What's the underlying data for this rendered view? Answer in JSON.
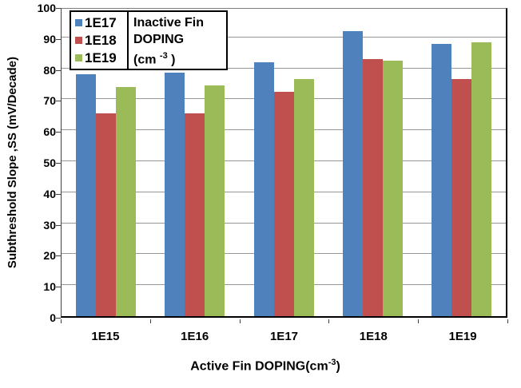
{
  "figure": {
    "ylabel": "Subthreshold Slope ,SS (mV/Decade)",
    "xlabel_pre": "Active  Fin DOPING(cm",
    "xlabel_sup": "-3",
    "xlabel_post": ")",
    "legend": {
      "title_line1": "Inactive Fin",
      "title_line2": "DOPING",
      "title_line3_pre": "(cm ",
      "title_line3_sup": "-3",
      "title_line3_post": " )"
    }
  },
  "chart_data": {
    "type": "bar",
    "title": "",
    "categories": [
      "1E15",
      "1E16",
      "1E17",
      "1E18",
      "1E19"
    ],
    "series": [
      {
        "name": "1E17",
        "color": "#4F81BD",
        "values": [
          78,
          78.5,
          82,
          92,
          88
        ]
      },
      {
        "name": "1E18",
        "color": "#C0504D",
        "values": [
          65.5,
          65.5,
          72.5,
          83,
          76.5
        ]
      },
      {
        "name": "1E19",
        "color": "#9BBB59",
        "values": [
          74,
          74.5,
          76.5,
          82.5,
          88.5
        ]
      }
    ],
    "xlabel": "Active Fin DOPING(cm-3)",
    "ylabel": "Subthreshold Slope ,SS (mV/Decade)",
    "ylim": [
      0,
      100
    ],
    "ytick_step": 10,
    "grid": true,
    "legend_position": "top-left",
    "legend_title": "Inactive Fin DOPING (cm-3)",
    "colors": {
      "bar_blue": "#4F81BD",
      "bar_red": "#C0504D",
      "bar_green": "#9BBB59",
      "gridline": "#969696",
      "axis": "#000000"
    }
  }
}
